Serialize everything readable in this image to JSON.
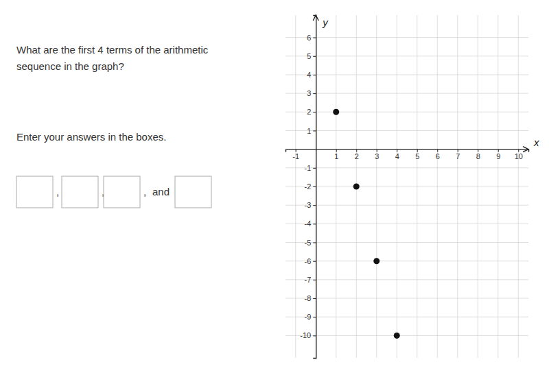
{
  "chart_data": {
    "type": "scatter",
    "annotations": [
      "What are the first 4 terms of the arithmetic",
      "sequence in the graph?",
      "Enter your answers in the boxes.",
      ",",
      ",",
      ",",
      "and"
    ],
    "x_label": "x",
    "y_label": "y",
    "x": [
      1,
      2,
      3,
      4
    ],
    "values": [
      2,
      -2,
      -6,
      -10
    ],
    "color": "#111111",
    "xlim": [
      -1.5,
      10.5
    ],
    "ylim": [
      -11.2,
      7.2
    ],
    "xticks": [
      -1,
      1,
      2,
      3,
      4,
      5,
      6,
      7,
      8,
      9,
      10
    ],
    "yticks": [
      -10,
      -9,
      -8,
      -7,
      -6,
      -5,
      -4,
      -3,
      -2,
      -1,
      1,
      2,
      3,
      4,
      5,
      6
    ],
    "grid": true
  }
}
